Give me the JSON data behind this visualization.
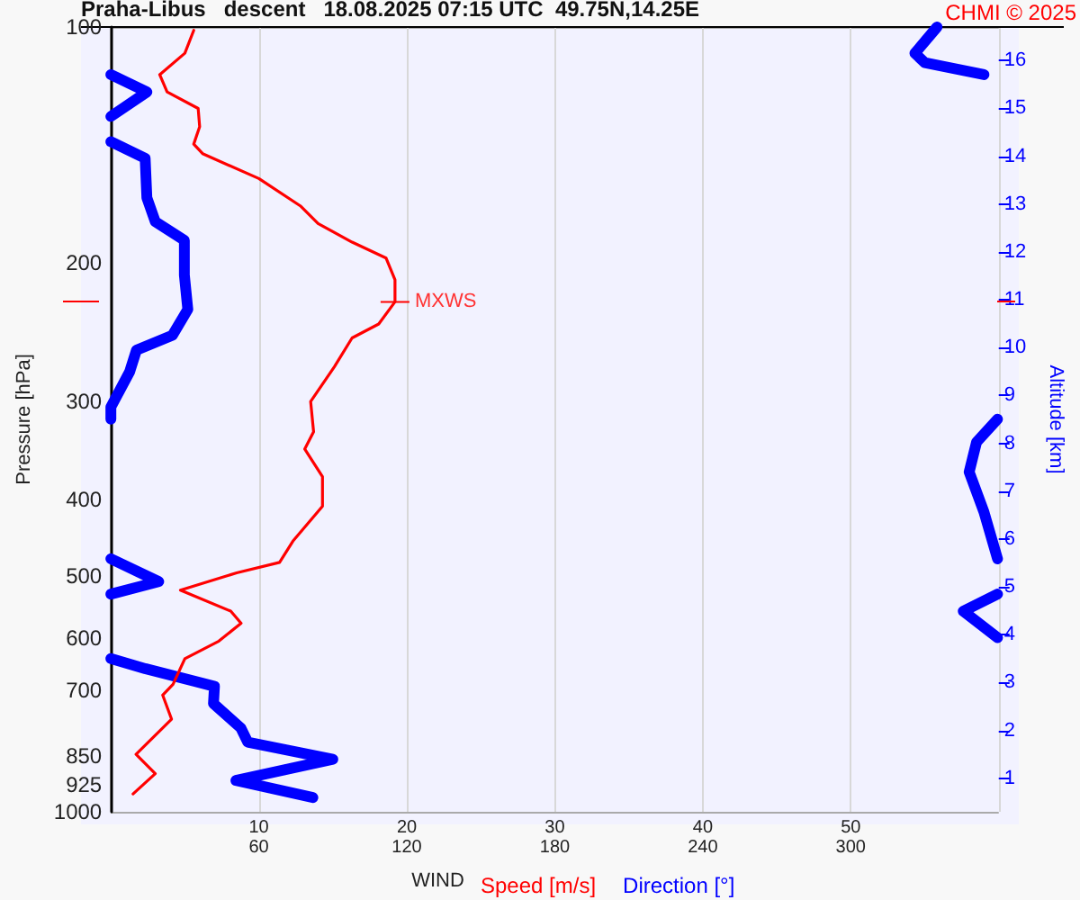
{
  "chart_data": {
    "type": "line",
    "orientation": "horizontal",
    "title": "Praha-Libus   descent   18.08.2025 07:15 UTC  49.75N,14.25E",
    "xlabel": "WIND",
    "ylabel": "Pressure [hPa]",
    "y2label": "Altitude [km]",
    "annotations": [
      "CHMI © 2025",
      {
        "text": "MXWS",
        "x": 19.2,
        "y": 224
      }
    ],
    "xlim": [
      0,
      60
    ],
    "xticks": [
      10,
      20,
      30,
      40,
      50
    ],
    "x2lim": [
      0,
      360
    ],
    "x2ticks": [
      60,
      120,
      180,
      240,
      300
    ],
    "ylim": [
      1000,
      100
    ],
    "yticks": [
      100,
      200,
      300,
      400,
      500,
      600,
      700,
      850,
      925,
      1000
    ],
    "log": "y",
    "y2lim": [
      0.3,
      16.7
    ],
    "y2ticks": [
      1,
      2,
      3,
      4,
      5,
      6,
      7,
      8,
      9,
      10,
      11,
      12,
      13,
      14,
      15,
      16
    ],
    "grid": true,
    "legend": "bottom",
    "marker": "none",
    "line_style": "solid",
    "series": [
      {
        "name": "Speed [m/s]",
        "color": "#ff0000",
        "values": [
          5.6,
          5.0,
          3.3,
          3.8,
          5.9,
          6.0,
          5.6,
          6.2,
          10.0,
          12.8,
          14.0,
          16.3,
          18.6,
          19.2,
          19.2,
          18.1,
          16.3,
          15.1,
          13.5,
          13.7,
          13.1,
          14.3,
          14.3,
          12.3,
          11.4,
          8.5,
          4.7,
          8.1,
          8.8,
          7.3,
          5.0,
          4.2,
          3.5,
          4.1,
          1.7,
          3.0,
          1.5
        ],
        "x": [
          101,
          108,
          115,
          121,
          127,
          134,
          141,
          145,
          156,
          169,
          178,
          188,
          197,
          210,
          224,
          239,
          249,
          271,
          300,
          328,
          345,
          374,
          408,
          452,
          481,
          496,
          522,
          555,
          575,
          606,
          638,
          688,
          710,
          762,
          845,
          894,
          949
        ]
      },
      {
        "name": "Direction [°]",
        "color": "#0000ff",
        "axis": "x2",
        "values": [
          335,
          326,
          330,
          354,
          null,
          0,
          14.6,
          0,
          null,
          0,
          13.9,
          14.6,
          18,
          29.8,
          29.8,
          31.2,
          25,
          10.4,
          7.6,
          0,
          0,
          null,
          359.5,
          351,
          348,
          354,
          359.5,
          null,
          0,
          19.4,
          0,
          null,
          359.5,
          345.6,
          359.5,
          null,
          0,
          13.9,
          42,
          41.6,
          52.7,
          55.5,
          90,
          50.7,
          81.9
        ],
        "x": [
          100,
          108,
          111,
          115,
          null,
          115,
          121,
          130,
          null,
          140,
          147,
          165,
          177,
          187,
          207,
          229,
          247,
          258,
          275,
          305,
          316,
          null,
          316,
          338,
          369,
          415,
          476,
          null,
          476,
          509,
          528,
          null,
          528,
          555,
          600,
          null,
          638,
          657,
          692,
          728,
          782,
          815,
          857,
          912,
          959
        ]
      }
    ]
  }
}
